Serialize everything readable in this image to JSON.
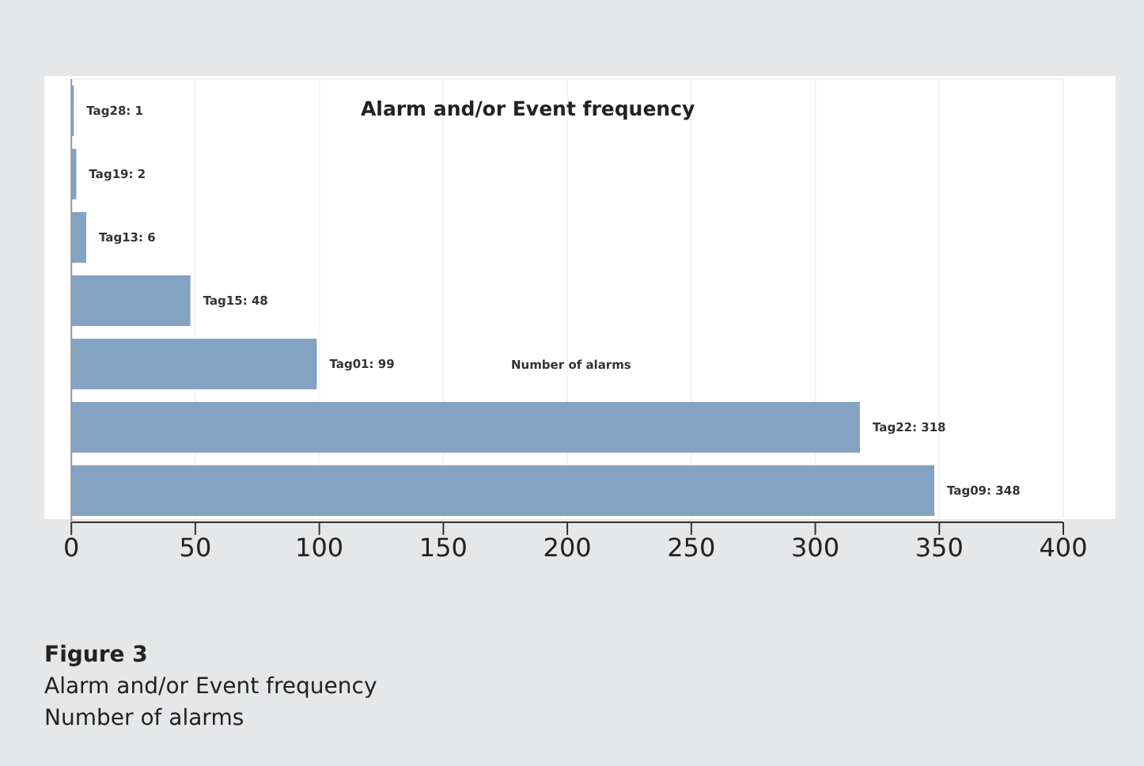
{
  "chart_data": {
    "type": "bar",
    "orientation": "horizontal",
    "title": "Alarm and/or Event frequency",
    "xlabel": "Number of alarms",
    "categories": [
      null,
      null,
      null,
      null,
      null,
      null,
      null
    ],
    "values": [
      1,
      2,
      6,
      48,
      99,
      318,
      348
    ],
    "value_labels": [
      "Tag28: 1",
      "Tag19: 2",
      "Tag13: 6",
      "Tag15: 48",
      "Tag01: 99",
      "Tag22: 318",
      "Tag09: 348"
    ],
    "color": "#84a3c3",
    "xlim": [
      0,
      400
    ],
    "xticks": [
      0,
      50,
      100,
      150,
      200,
      250,
      300,
      350,
      400
    ],
    "grid": true,
    "tick_labels": "x",
    "annotations": [
      "Figure 3",
      "Alarm and/or Event frequency",
      "Number of alarms"
    ]
  }
}
